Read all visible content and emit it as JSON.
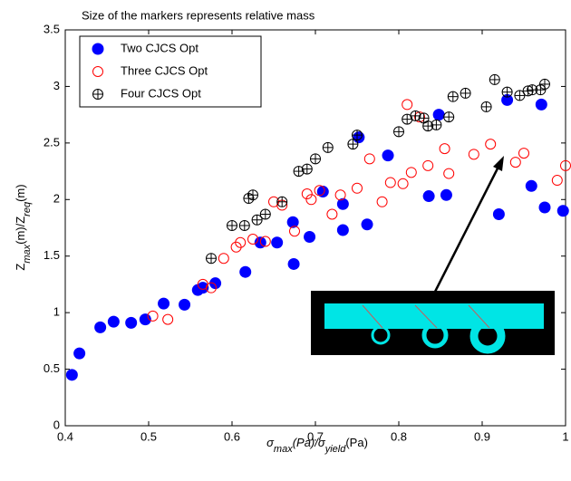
{
  "chart_data": {
    "type": "scatter",
    "title": "Size of the markers represents relative mass",
    "xlabel": [
      "σ",
      "max",
      "(Pa)/σ",
      "yield",
      "(Pa)"
    ],
    "ylabel": [
      "Z",
      "max",
      "(m)/Z",
      "req",
      "(m)"
    ],
    "xlim": [
      0.4,
      1
    ],
    "ylim": [
      0,
      3.5
    ],
    "xticks": [
      0.4,
      0.5,
      0.6,
      0.7,
      0.8,
      0.9,
      1
    ],
    "yticks": [
      0,
      0.5,
      1,
      1.5,
      2,
      2.5,
      3,
      3.5
    ],
    "grid": false,
    "legend": "upper left",
    "series": [
      {
        "name": "Two CJCS Opt",
        "color": "#0000ff",
        "marker": "filled-circle",
        "x": [
          0.408,
          0.417,
          0.442,
          0.458,
          0.479,
          0.496,
          0.518,
          0.543,
          0.559,
          0.565,
          0.58,
          0.616,
          0.634,
          0.654,
          0.673,
          0.674,
          0.693,
          0.709,
          0.733,
          0.733,
          0.762,
          0.752,
          0.787,
          0.848,
          0.836,
          0.857,
          0.93,
          0.92,
          0.971,
          0.959,
          0.975,
          0.997
        ],
        "y": [
          0.45,
          0.64,
          0.87,
          0.92,
          0.91,
          0.94,
          1.08,
          1.07,
          1.2,
          1.22,
          1.26,
          1.36,
          1.62,
          1.62,
          1.8,
          1.43,
          1.67,
          2.07,
          1.96,
          1.73,
          1.78,
          2.55,
          2.39,
          2.75,
          2.03,
          2.04,
          2.88,
          1.87,
          2.84,
          2.12,
          1.93,
          1.9
        ]
      },
      {
        "name": "Three CJCS Opt",
        "color": "#ff0000",
        "marker": "open-circle",
        "x": [
          0.505,
          0.523,
          0.565,
          0.575,
          0.59,
          0.605,
          0.61,
          0.625,
          0.64,
          0.65,
          0.66,
          0.675,
          0.69,
          0.695,
          0.705,
          0.72,
          0.73,
          0.75,
          0.765,
          0.78,
          0.79,
          0.805,
          0.81,
          0.815,
          0.825,
          0.835,
          0.855,
          0.86,
          0.89,
          0.91,
          0.94,
          0.95,
          0.99,
          1.0
        ],
        "y": [
          0.97,
          0.94,
          1.25,
          1.22,
          1.48,
          1.58,
          1.62,
          1.65,
          1.63,
          1.98,
          1.95,
          1.72,
          2.05,
          2.0,
          2.08,
          1.87,
          2.04,
          2.1,
          2.36,
          1.98,
          2.15,
          2.14,
          2.84,
          2.24,
          2.73,
          2.3,
          2.45,
          2.23,
          2.4,
          2.49,
          2.33,
          2.41,
          2.17,
          2.3
        ]
      },
      {
        "name": "Four CJCS Opt",
        "color": "#000000",
        "marker": "circle-plus",
        "x": [
          0.575,
          0.6,
          0.615,
          0.62,
          0.625,
          0.63,
          0.64,
          0.66,
          0.68,
          0.69,
          0.7,
          0.715,
          0.745,
          0.75,
          0.8,
          0.81,
          0.82,
          0.83,
          0.835,
          0.845,
          0.86,
          0.865,
          0.88,
          0.905,
          0.915,
          0.93,
          0.945,
          0.955,
          0.96,
          0.97,
          0.975
        ],
        "y": [
          1.48,
          1.77,
          1.77,
          2.01,
          2.04,
          1.82,
          1.87,
          1.98,
          2.25,
          2.27,
          2.36,
          2.46,
          2.49,
          2.57,
          2.6,
          2.71,
          2.74,
          2.72,
          2.65,
          2.66,
          2.73,
          2.91,
          2.94,
          2.82,
          3.06,
          2.95,
          2.92,
          2.96,
          2.97,
          2.97,
          3.02
        ]
      }
    ]
  }
}
